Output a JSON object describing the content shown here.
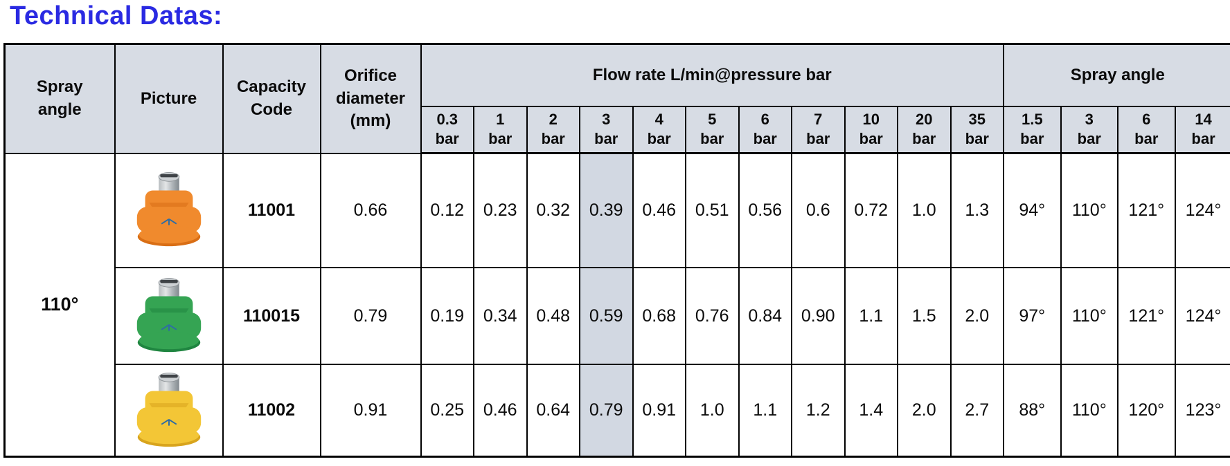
{
  "page": {
    "title": "Technical Datas:",
    "title_color": "#2a2ae2"
  },
  "colors": {
    "header_bg": "#d7dce4",
    "highlight_bg": "#d2d8e2",
    "border": "#000000",
    "title_blue": "#2a2ae2"
  },
  "table": {
    "header": {
      "col_spray_angle": "Spray angle",
      "col_picture": "Picture",
      "col_capacity_code": "Capacity Code",
      "col_orifice_diameter": "Orifice diameter (mm)",
      "group_flow_rate": "Flow rate L/min@pressure bar",
      "group_spray_angle": "Spray angle",
      "pressure_unit": "bar",
      "flow_pressures": [
        "0.3",
        "1",
        "2",
        "3",
        "4",
        "5",
        "6",
        "7",
        "10",
        "20",
        "35"
      ],
      "angle_pressures": [
        "1.5",
        "3",
        "6",
        "14"
      ],
      "highlighted_flow_index": 3,
      "highlighted_pressure": "3"
    },
    "spray_angle_value": "110°",
    "rows": [
      {
        "nozzle": "orange-nozzle",
        "nozzle_color": "#f08a2d",
        "nozzle_color_dark": "#d96e15",
        "capacity_code": "11001",
        "orifice_mm": "0.66",
        "flow_rates": [
          "0.12",
          "0.23",
          "0.32",
          "0.39",
          "0.46",
          "0.51",
          "0.56",
          "0.6",
          "0.72",
          "1.0",
          "1.3"
        ],
        "spray_angles": [
          "94°",
          "110°",
          "121°",
          "124°"
        ]
      },
      {
        "nozzle": "green-nozzle",
        "nozzle_color": "#35a453",
        "nozzle_color_dark": "#1f8540",
        "capacity_code": "110015",
        "orifice_mm": "0.79",
        "flow_rates": [
          "0.19",
          "0.34",
          "0.48",
          "0.59",
          "0.68",
          "0.76",
          "0.84",
          "0.90",
          "1.1",
          "1.5",
          "2.0"
        ],
        "spray_angles": [
          "97°",
          "110°",
          "121°",
          "124°"
        ]
      },
      {
        "nozzle": "yellow-nozzle",
        "nozzle_color": "#f3c636",
        "nozzle_color_dark": "#d8a41d",
        "capacity_code": "11002",
        "orifice_mm": "0.91",
        "flow_rates": [
          "0.25",
          "0.46",
          "0.64",
          "0.79",
          "0.91",
          "1.0",
          "1.1",
          "1.2",
          "1.4",
          "2.0",
          "2.7"
        ],
        "spray_angles": [
          "88°",
          "110°",
          "120°",
          "123°"
        ]
      }
    ]
  }
}
